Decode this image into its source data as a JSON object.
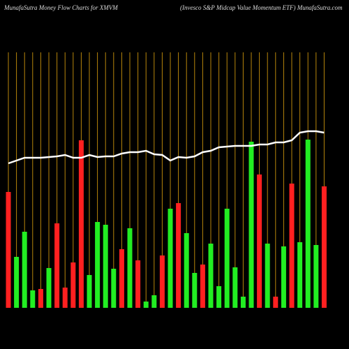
{
  "chart_data": {
    "type": "bar",
    "title": "MunafaSutra  Money Flow  Charts for XMVM",
    "subtitle": "(Invesco  S&P Midcap Value   Momentum ETF) MunafaSutra.com",
    "ylim": [
      0,
      370
    ],
    "series": [
      {
        "name": "Money Flow",
        "values": [
          166,
          73,
          109,
          25,
          27,
          57,
          121,
          29,
          65,
          240,
          47,
          123,
          119,
          56,
          84,
          114,
          68,
          9,
          18,
          75,
          142,
          150,
          107,
          50,
          62,
          92,
          31,
          142,
          58,
          16,
          238,
          191,
          92,
          16,
          88,
          178,
          94,
          241,
          90,
          174
        ],
        "colors": [
          "#ff2020",
          "#22ee22",
          "#22ee22",
          "#22ee22",
          "#ff2020",
          "#22ee22",
          "#ff2020",
          "#ff2020",
          "#ff2020",
          "#ff2020",
          "#22ee22",
          "#22ee22",
          "#22ee22",
          "#22ee22",
          "#ff2020",
          "#22ee22",
          "#ff2020",
          "#22ee22",
          "#22ee22",
          "#ff2020",
          "#22ee22",
          "#ff2020",
          "#22ee22",
          "#22ee22",
          "#ff2020",
          "#22ee22",
          "#22ee22",
          "#22ee22",
          "#22ee22",
          "#22ee22",
          "#22ee22",
          "#ff2020",
          "#22ee22",
          "#ff2020",
          "#22ee22",
          "#ff2020",
          "#22ee22",
          "#22ee22",
          "#22ee22",
          "#ff2020"
        ]
      },
      {
        "name": "Price",
        "type": "line",
        "color": "#ffffff",
        "values": [
          207,
          211,
          215,
          215,
          215,
          216,
          217,
          219,
          215,
          215,
          219,
          216,
          217,
          217,
          221,
          223,
          223,
          225,
          220,
          219,
          211,
          216,
          215,
          217,
          223,
          225,
          230,
          231,
          232,
          232,
          232,
          234,
          234,
          237,
          237,
          240,
          251,
          253,
          253,
          251
        ]
      }
    ],
    "gridline_color": "#b8860b"
  }
}
